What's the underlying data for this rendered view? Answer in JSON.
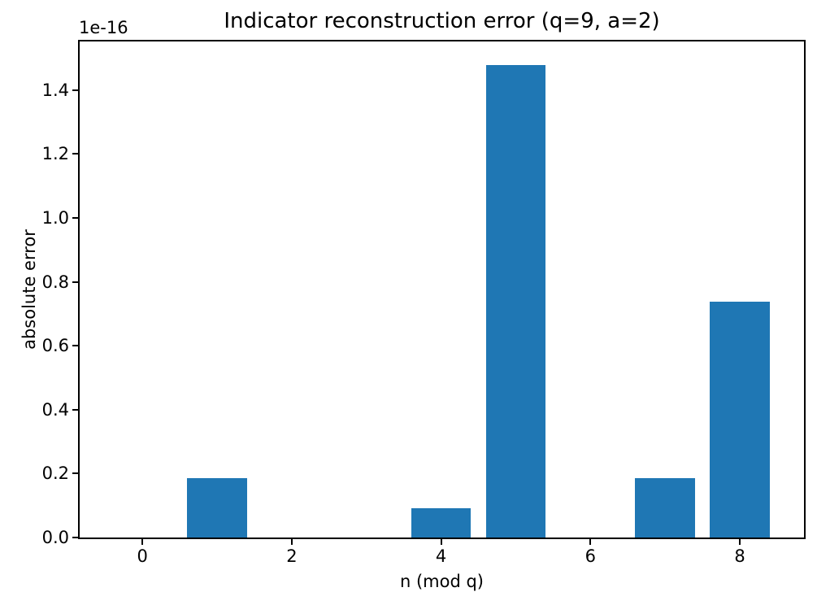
{
  "chart_data": {
    "type": "bar",
    "title": "Indicator reconstruction error (q=9, a=2)",
    "xlabel": "n (mod q)",
    "ylabel": "absolute error",
    "y_offset_text": "1e-16",
    "categories": [
      0,
      1,
      2,
      3,
      4,
      5,
      6,
      7,
      8
    ],
    "values_1e16": [
      0,
      0.185,
      0,
      0,
      0.0925,
      1.478,
      0,
      0.185,
      0.739
    ],
    "values_absolute": [
      "0",
      "1.85e-17",
      "0",
      "0",
      "9.25e-18",
      "1.478e-16",
      "0",
      "1.85e-17",
      "7.39e-17"
    ],
    "xticks": [
      0,
      2,
      4,
      6,
      8
    ],
    "xtick_labels": [
      "0",
      "2",
      "4",
      "6",
      "8"
    ],
    "ytick_values": [
      0.0,
      0.2,
      0.4,
      0.6,
      0.8,
      1.0,
      1.2,
      1.4
    ],
    "ytick_labels": [
      "0.0",
      "0.2",
      "0.4",
      "0.6",
      "0.8",
      "1.0",
      "1.2",
      "1.4"
    ],
    "xlim": [
      -0.84,
      8.86
    ],
    "ylim_1e16": [
      0,
      1.552
    ],
    "bar_width": 0.8,
    "bar_color": "#1f77b4",
    "grid": false,
    "legend": null
  }
}
